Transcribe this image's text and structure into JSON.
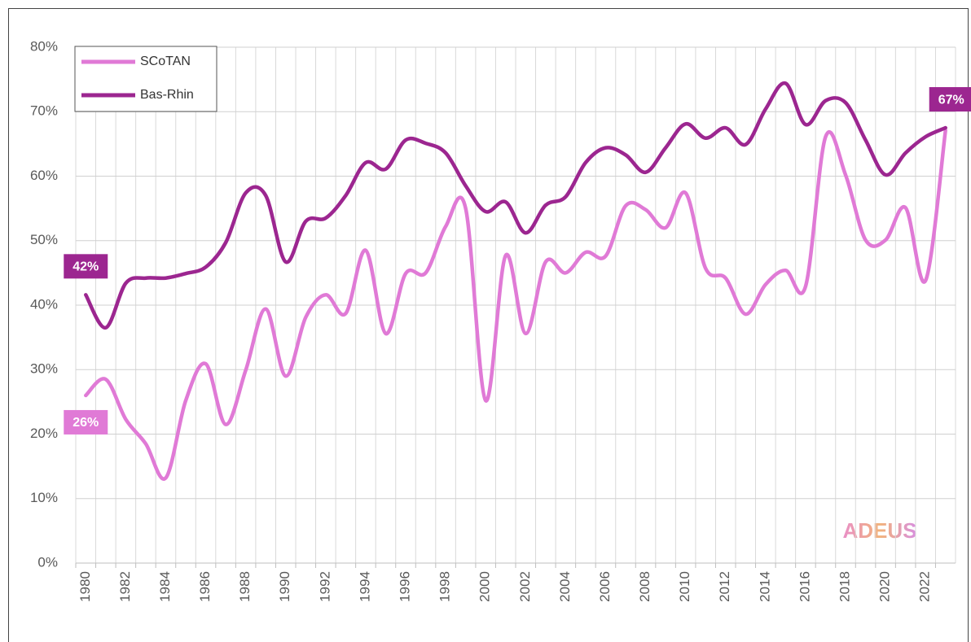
{
  "chart_data": {
    "type": "line",
    "categories": [
      "1980",
      null,
      "1982",
      null,
      "1984",
      null,
      "1986",
      null,
      "1988",
      null,
      "1990",
      null,
      "1992",
      null,
      "1994",
      null,
      "1996",
      null,
      "1998",
      null,
      "2000",
      null,
      "2002",
      null,
      "2004",
      null,
      "2006",
      null,
      "2008",
      null,
      "2010",
      null,
      "2012",
      null,
      "2014",
      null,
      "2016",
      null,
      "2018",
      null,
      "2020",
      null,
      "2022",
      null
    ],
    "series": [
      {
        "name": "SCoTAN",
        "color": "#e07ad6",
        "values": [
          26,
          28.5,
          22.3,
          18.5,
          13.2,
          25.2,
          30.9,
          21.5,
          29.9,
          39.4,
          29,
          38.1,
          41.6,
          38.7,
          48.5,
          35.6,
          44.9,
          45,
          52.2,
          55,
          25.2,
          47.7,
          35.6,
          46.7,
          45,
          48.2,
          47.6,
          55.4,
          54.8,
          52,
          57.4,
          45.7,
          44.2,
          38.6,
          43.2,
          45.4,
          42.9,
          66.1,
          60.2,
          50.1,
          50.1,
          55.1,
          43.8,
          67.1
        ],
        "value_labels": [
          "26%",
          null,
          null,
          null,
          null,
          null,
          null,
          null,
          null,
          null,
          null,
          null,
          null,
          null,
          null,
          null,
          null,
          null,
          null,
          null,
          null,
          null,
          null,
          null,
          null,
          null,
          null,
          null,
          null,
          null,
          null,
          null,
          null,
          null,
          null,
          null,
          null,
          null,
          null,
          null,
          null,
          null,
          null,
          null
        ]
      },
      {
        "name": "Bas-Rhin",
        "color": "#9c2690",
        "values": [
          41.6,
          36.5,
          43.4,
          44.2,
          44.2,
          44.9,
          45.9,
          49.7,
          57.4,
          57,
          46.7,
          53,
          53.5,
          57,
          62.1,
          61.1,
          65.6,
          65.1,
          63.6,
          58.5,
          54.5,
          56,
          51.2,
          55.5,
          56.8,
          62.1,
          64.4,
          63.3,
          60.6,
          64.4,
          68.1,
          65.9,
          67.5,
          64.9,
          70.4,
          74.4,
          68,
          71.7,
          71.4,
          65.6,
          60.2,
          63.6,
          66.1,
          67.5
        ],
        "value_labels": [
          "42%",
          null,
          null,
          null,
          null,
          null,
          null,
          null,
          null,
          null,
          null,
          null,
          null,
          null,
          null,
          null,
          null,
          null,
          null,
          null,
          null,
          null,
          null,
          null,
          null,
          null,
          null,
          null,
          null,
          null,
          null,
          null,
          null,
          null,
          null,
          null,
          null,
          null,
          null,
          null,
          null,
          null,
          null,
          "67%"
        ]
      }
    ],
    "ylim": [
      0,
      80
    ],
    "yticks": [
      {
        "value": 0,
        "label": "0%"
      },
      {
        "value": 10,
        "label": "10%"
      },
      {
        "value": 20,
        "label": "20%"
      },
      {
        "value": 30,
        "label": "30%"
      },
      {
        "value": 40,
        "label": "40%"
      },
      {
        "value": 50,
        "label": "50%"
      },
      {
        "value": 60,
        "label": "60%"
      },
      {
        "value": 70,
        "label": "70%"
      },
      {
        "value": 80,
        "label": "80%"
      }
    ],
    "grid": true,
    "legend": "top-left",
    "logo": "ADEUS"
  }
}
